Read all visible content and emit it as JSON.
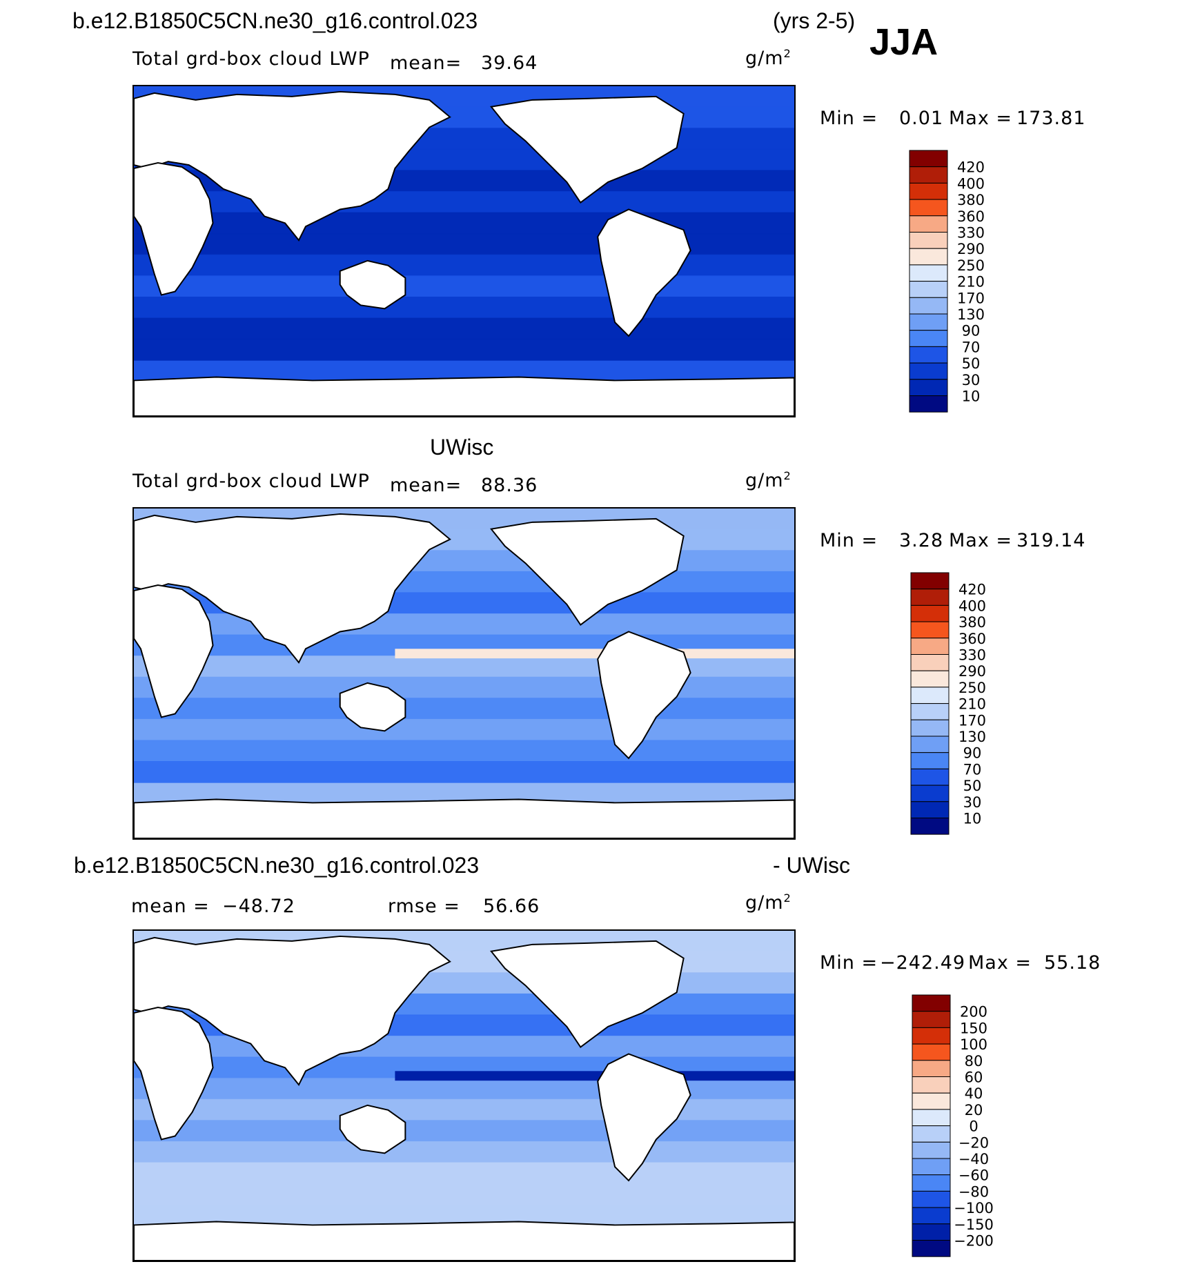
{
  "header": {
    "case_top": "b.e12.B1850C5CN.ne30_g16.control.023",
    "years": "(yrs 2-5)",
    "season": "JJA",
    "case_bottom": "b.e12.B1850C5CN.ne30_g16.control.023",
    "minus_obs": "- UWisc",
    "obs_title": "UWisc"
  },
  "colors": {
    "lwp_palette": [
      "#000a82",
      "#0028b4",
      "#0a3ccf",
      "#1e55e6",
      "#2e6cf2",
      "#4a86f5",
      "#6f9ff5",
      "#95b8f5",
      "#b8d0f8",
      "#dce9fb",
      "#fae8dc",
      "#f9d0bb",
      "#f7a985",
      "#f77f4c",
      "#f5561e",
      "#d42f08",
      "#b01e08",
      "#820000"
    ],
    "diff_palette": [
      "#000a82",
      "#0020a8",
      "#0a3ccf",
      "#1e55e6",
      "#2e6cf2",
      "#4a86f5",
      "#6f9ff5",
      "#95b8f5",
      "#b8d0f8",
      "#dce9fb",
      "#fae8dc",
      "#f9d0bb",
      "#f7a985",
      "#f77f4c",
      "#f5561e",
      "#d42f08",
      "#b01e08",
      "#820000"
    ],
    "land": "#ffffff",
    "coast": "#000000"
  },
  "chart_data": [
    {
      "type": "heatmap",
      "title": "b.e12.B1850C5CN.ne30_g16.control.023",
      "subtitle": "(yrs 2-5)",
      "variable": "Total grd-box cloud LWP",
      "mean_label": "mean=",
      "mean": "39.64",
      "units": "g/m",
      "units_exp": "2",
      "min_label": "Min =",
      "min": "0.01",
      "max_label": "Max =",
      "max": "173.81",
      "colorbar_levels": [
        "420",
        "400",
        "380",
        "360",
        "330",
        "290",
        "250",
        "210",
        "170",
        "130",
        "90",
        "70",
        "50",
        "30",
        "10"
      ]
    },
    {
      "type": "heatmap",
      "title": "UWisc",
      "variable": "Total grd-box cloud LWP",
      "mean_label": "mean=",
      "mean": "88.36",
      "units": "g/m",
      "units_exp": "2",
      "min_label": "Min =",
      "min": "3.28",
      "max_label": "Max =",
      "max": "319.14",
      "colorbar_levels": [
        "420",
        "400",
        "380",
        "360",
        "330",
        "290",
        "250",
        "210",
        "170",
        "130",
        "90",
        "70",
        "50",
        "30",
        "10"
      ]
    },
    {
      "type": "heatmap",
      "title": "b.e12.B1850C5CN.ne30_g16.control.023 - UWisc",
      "mean_label": "mean =",
      "mean": "−48.72",
      "rmse_label": "rmse =",
      "rmse": "56.66",
      "units": "g/m",
      "units_exp": "2",
      "min_label": "Min =",
      "min": "−242.49",
      "max_label": "Max =",
      "max": "55.18",
      "colorbar_levels": [
        "200",
        "150",
        "100",
        "80",
        "60",
        "40",
        "20",
        "0",
        "−20",
        "−40",
        "−60",
        "−80",
        "−100",
        "−150",
        "−200"
      ]
    }
  ]
}
